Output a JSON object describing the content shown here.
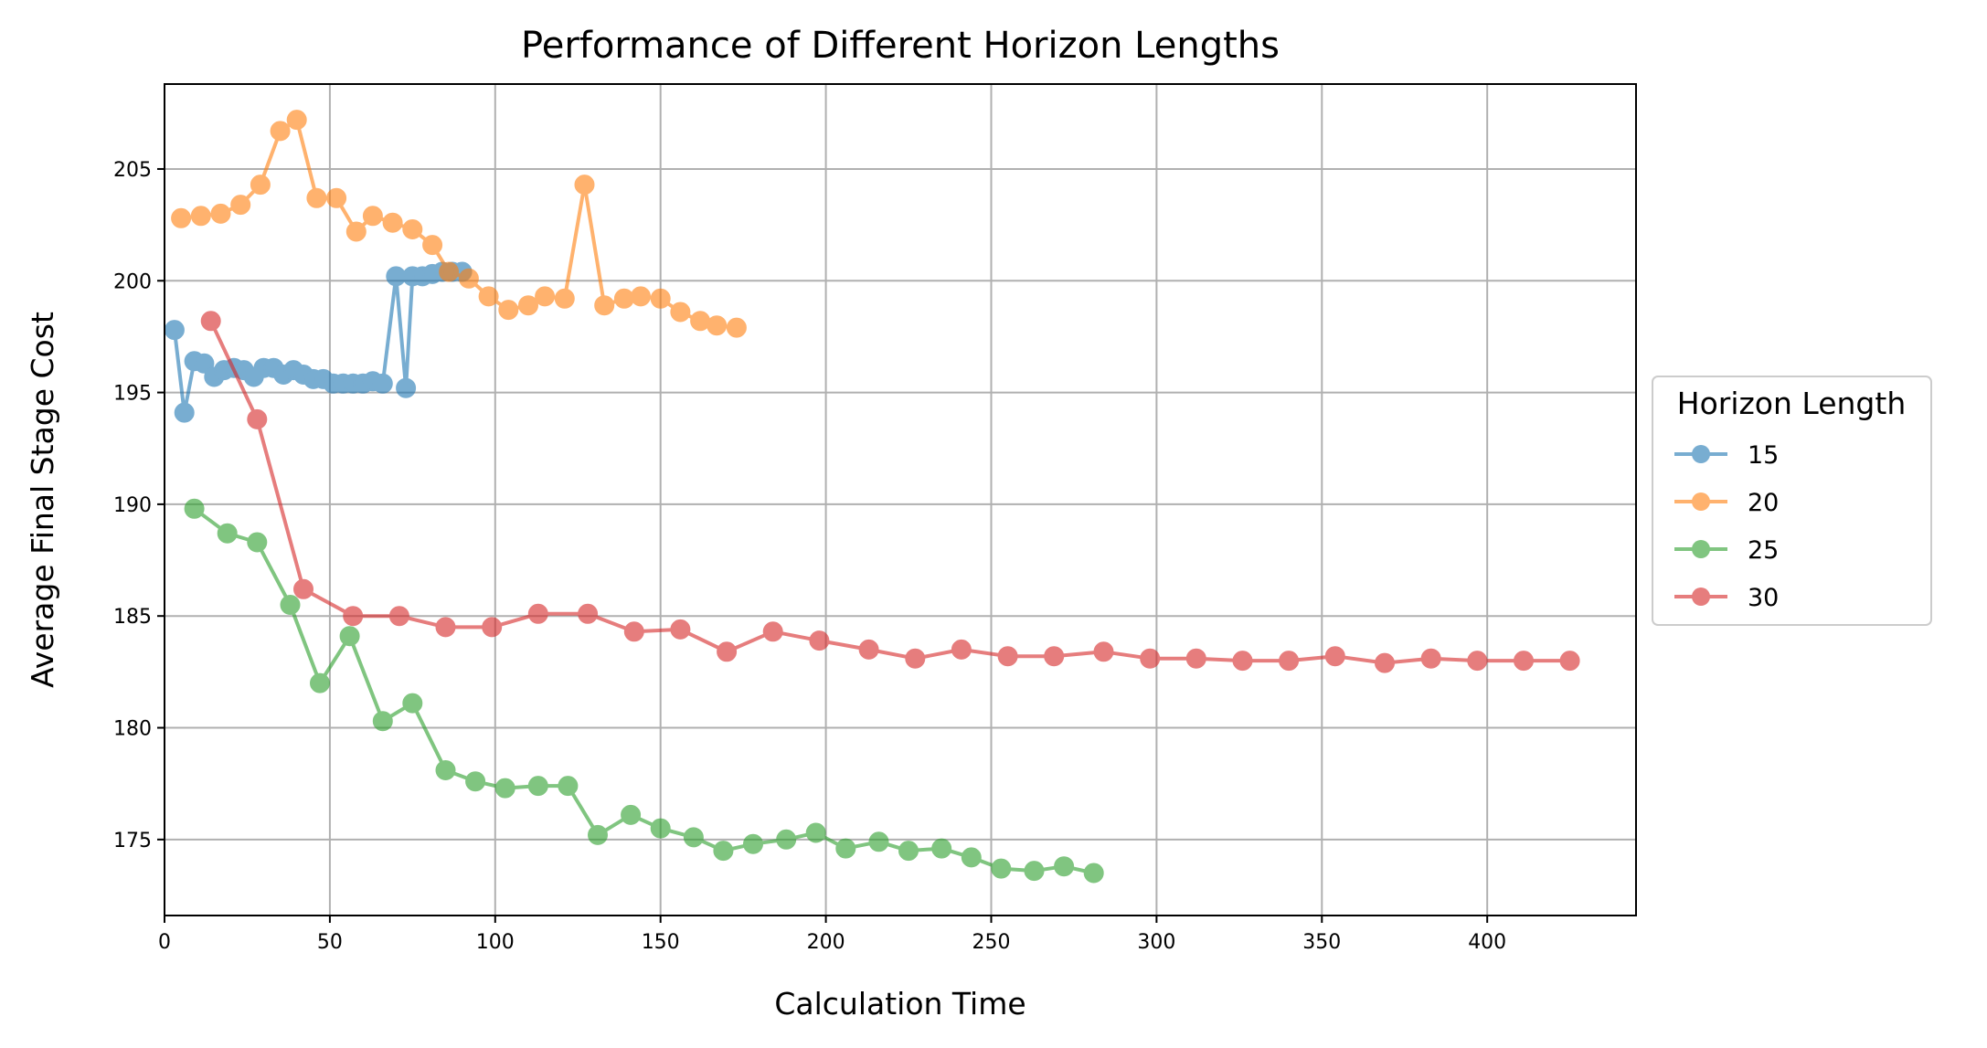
{
  "chart_data": {
    "type": "line",
    "title": "Performance of Different Horizon Lengths",
    "xlabel": "Calculation Time",
    "ylabel": "Average Final Stage Cost",
    "xlim": [
      0,
      445
    ],
    "ylim": [
      171.6,
      208.8
    ],
    "xticks": [
      0,
      50,
      100,
      150,
      200,
      250,
      300,
      350,
      400
    ],
    "yticks": [
      175,
      180,
      185,
      190,
      195,
      200,
      205
    ],
    "grid": true,
    "legend": {
      "title": "Horizon Length",
      "placement": "center-right-outside"
    },
    "series": [
      {
        "name": "15",
        "color": "#1f77b4",
        "points": [
          [
            3,
            197.8
          ],
          [
            6,
            194.1
          ],
          [
            9,
            196.4
          ],
          [
            12,
            196.3
          ],
          [
            15,
            195.7
          ],
          [
            18,
            196.0
          ],
          [
            21,
            196.1
          ],
          [
            24,
            196.0
          ],
          [
            27,
            195.7
          ],
          [
            30,
            196.1
          ],
          [
            33,
            196.1
          ],
          [
            36,
            195.8
          ],
          [
            39,
            196.0
          ],
          [
            42,
            195.8
          ],
          [
            45,
            195.6
          ],
          [
            48,
            195.6
          ],
          [
            51,
            195.4
          ],
          [
            54,
            195.4
          ],
          [
            57,
            195.4
          ],
          [
            60,
            195.4
          ],
          [
            63,
            195.5
          ],
          [
            66,
            195.4
          ],
          [
            70,
            200.2
          ],
          [
            73,
            195.2
          ],
          [
            75,
            200.2
          ],
          [
            78,
            200.2
          ],
          [
            81,
            200.3
          ],
          [
            84,
            200.4
          ],
          [
            87,
            200.4
          ],
          [
            90,
            200.4
          ]
        ]
      },
      {
        "name": "20",
        "color": "#ff7f0e",
        "points": [
          [
            5,
            202.8
          ],
          [
            11,
            202.9
          ],
          [
            17,
            203.0
          ],
          [
            23,
            203.4
          ],
          [
            29,
            204.3
          ],
          [
            35,
            206.7
          ],
          [
            40,
            207.2
          ],
          [
            46,
            203.7
          ],
          [
            52,
            203.7
          ],
          [
            58,
            202.2
          ],
          [
            63,
            202.9
          ],
          [
            69,
            202.6
          ],
          [
            75,
            202.3
          ],
          [
            81,
            201.6
          ],
          [
            86,
            200.4
          ],
          [
            92,
            200.1
          ],
          [
            98,
            199.3
          ],
          [
            104,
            198.7
          ],
          [
            110,
            198.9
          ],
          [
            115,
            199.3
          ],
          [
            121,
            199.2
          ],
          [
            127,
            204.3
          ],
          [
            133,
            198.9
          ],
          [
            139,
            199.2
          ],
          [
            144,
            199.3
          ],
          [
            150,
            199.2
          ],
          [
            156,
            198.6
          ],
          [
            162,
            198.2
          ],
          [
            167,
            198.0
          ],
          [
            173,
            197.9
          ]
        ]
      },
      {
        "name": "25",
        "color": "#2ca02c",
        "points": [
          [
            9,
            189.8
          ],
          [
            19,
            188.7
          ],
          [
            28,
            188.3
          ],
          [
            38,
            185.5
          ],
          [
            47,
            182.0
          ],
          [
            56,
            184.1
          ],
          [
            66,
            180.3
          ],
          [
            75,
            181.1
          ],
          [
            85,
            178.1
          ],
          [
            94,
            177.6
          ],
          [
            103,
            177.3
          ],
          [
            113,
            177.4
          ],
          [
            122,
            177.4
          ],
          [
            131,
            175.2
          ],
          [
            141,
            176.1
          ],
          [
            150,
            175.5
          ],
          [
            160,
            175.1
          ],
          [
            169,
            174.5
          ],
          [
            178,
            174.8
          ],
          [
            188,
            175.0
          ],
          [
            197,
            175.3
          ],
          [
            206,
            174.6
          ],
          [
            216,
            174.9
          ],
          [
            225,
            174.5
          ],
          [
            235,
            174.6
          ],
          [
            244,
            174.2
          ],
          [
            253,
            173.7
          ],
          [
            263,
            173.6
          ],
          [
            272,
            173.8
          ],
          [
            281,
            173.5
          ]
        ]
      },
      {
        "name": "30",
        "color": "#d62728",
        "points": [
          [
            14,
            198.2
          ],
          [
            28,
            193.8
          ],
          [
            42,
            186.2
          ],
          [
            57,
            185.0
          ],
          [
            71,
            185.0
          ],
          [
            85,
            184.5
          ],
          [
            99,
            184.5
          ],
          [
            113,
            185.1
          ],
          [
            128,
            185.1
          ],
          [
            142,
            184.3
          ],
          [
            156,
            184.4
          ],
          [
            170,
            183.4
          ],
          [
            184,
            184.3
          ],
          [
            198,
            183.9
          ],
          [
            213,
            183.5
          ],
          [
            227,
            183.1
          ],
          [
            241,
            183.5
          ],
          [
            255,
            183.2
          ],
          [
            269,
            183.2
          ],
          [
            284,
            183.4
          ],
          [
            298,
            183.1
          ],
          [
            312,
            183.1
          ],
          [
            326,
            183.0
          ],
          [
            340,
            183.0
          ],
          [
            354,
            183.2
          ],
          [
            369,
            182.9
          ],
          [
            383,
            183.1
          ],
          [
            397,
            183.0
          ],
          [
            411,
            183.0
          ],
          [
            425,
            183.0
          ]
        ]
      }
    ]
  }
}
